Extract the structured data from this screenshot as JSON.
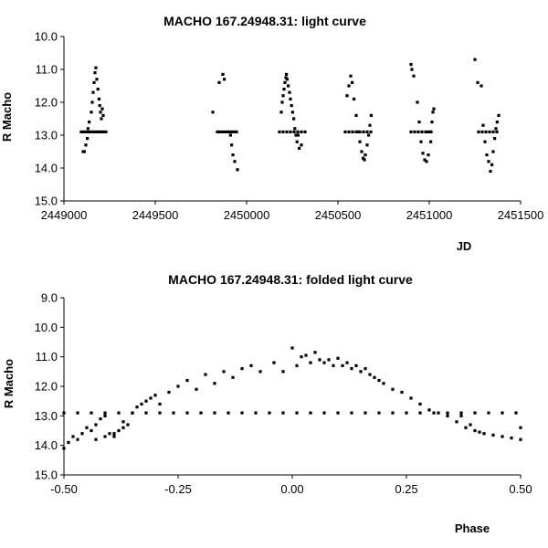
{
  "chart_data": [
    {
      "type": "scatter",
      "title": "MACHO 167.24948.31: light curve",
      "xlabel": "JD",
      "ylabel": "R Macho",
      "xlim": [
        2449000,
        2451500
      ],
      "ylim": [
        10.0,
        15.0
      ],
      "y_inverted": true,
      "x_ticks": [
        "2449000",
        "2449500",
        "2450000",
        "2450500",
        "2451000",
        "2451500"
      ],
      "y_ticks": [
        "10.0",
        "11.0",
        "12.0",
        "13.0",
        "14.0",
        "15.0"
      ],
      "grid": false,
      "marker_color": "#000000",
      "series": [
        {
          "points": [
            [
              2449095,
              12.9
            ],
            [
              2449110,
              12.9
            ],
            [
              2449125,
              12.9
            ],
            [
              2449140,
              12.9
            ],
            [
              2449155,
              12.9
            ],
            [
              2449170,
              12.9
            ],
            [
              2449185,
              12.9
            ],
            [
              2449200,
              12.9
            ],
            [
              2449215,
              12.9
            ],
            [
              2449230,
              12.9
            ],
            [
              2449105,
              13.5
            ],
            [
              2449112,
              13.5
            ],
            [
              2449120,
              13.3
            ],
            [
              2449128,
              13.1
            ],
            [
              2449132,
              12.8
            ],
            [
              2449138,
              12.6
            ],
            [
              2449150,
              12.3
            ],
            [
              2449155,
              12.0
            ],
            [
              2449160,
              11.7
            ],
            [
              2449165,
              11.4
            ],
            [
              2449170,
              11.1
            ],
            [
              2449175,
              10.95
            ],
            [
              2449180,
              11.3
            ],
            [
              2449186,
              11.6
            ],
            [
              2449192,
              11.9
            ],
            [
              2449196,
              12.1
            ],
            [
              2449200,
              12.3
            ],
            [
              2449205,
              12.5
            ],
            [
              2449210,
              12.2
            ],
            [
              2449215,
              12.4
            ],
            [
              2449840,
              12.9
            ],
            [
              2449855,
              12.9
            ],
            [
              2449870,
              12.9
            ],
            [
              2449885,
              12.9
            ],
            [
              2449900,
              12.9
            ],
            [
              2449915,
              12.9
            ],
            [
              2449930,
              12.9
            ],
            [
              2449945,
              12.9
            ],
            [
              2449815,
              12.3
            ],
            [
              2449850,
              11.4
            ],
            [
              2449870,
              11.15
            ],
            [
              2449878,
              11.3
            ],
            [
              2449912,
              13.0
            ],
            [
              2449918,
              13.3
            ],
            [
              2449925,
              13.6
            ],
            [
              2449935,
              13.8
            ],
            [
              2449950,
              14.05
            ],
            [
              2450180,
              12.9
            ],
            [
              2450200,
              12.9
            ],
            [
              2450220,
              12.9
            ],
            [
              2450240,
              12.9
            ],
            [
              2450260,
              12.9
            ],
            [
              2450280,
              12.9
            ],
            [
              2450300,
              12.9
            ],
            [
              2450320,
              12.9
            ],
            [
              2450190,
              12.3
            ],
            [
              2450195,
              12.0
            ],
            [
              2450200,
              11.8
            ],
            [
              2450205,
              11.6
            ],
            [
              2450210,
              11.4
            ],
            [
              2450215,
              11.25
            ],
            [
              2450218,
              11.15
            ],
            [
              2450222,
              11.3
            ],
            [
              2450228,
              11.5
            ],
            [
              2450235,
              11.7
            ],
            [
              2450240,
              11.9
            ],
            [
              2450246,
              12.1
            ],
            [
              2450252,
              12.3
            ],
            [
              2450258,
              12.5
            ],
            [
              2450264,
              12.8
            ],
            [
              2450270,
              13.0
            ],
            [
              2450276,
              13.2
            ],
            [
              2450282,
              13.0
            ],
            [
              2450288,
              13.4
            ],
            [
              2450300,
              13.3
            ],
            [
              2450540,
              12.9
            ],
            [
              2450560,
              12.9
            ],
            [
              2450580,
              12.9
            ],
            [
              2450600,
              12.9
            ],
            [
              2450620,
              12.9
            ],
            [
              2450640,
              12.9
            ],
            [
              2450660,
              12.9
            ],
            [
              2450680,
              12.9
            ],
            [
              2450550,
              11.8
            ],
            [
              2450560,
              11.5
            ],
            [
              2450570,
              11.2
            ],
            [
              2450578,
              11.4
            ],
            [
              2450588,
              11.9
            ],
            [
              2450600,
              12.4
            ],
            [
              2450610,
              12.9
            ],
            [
              2450620,
              13.2
            ],
            [
              2450630,
              13.5
            ],
            [
              2450638,
              13.7
            ],
            [
              2450645,
              13.75
            ],
            [
              2450650,
              13.6
            ],
            [
              2450660,
              13.3
            ],
            [
              2450668,
              13.0
            ],
            [
              2450675,
              12.7
            ],
            [
              2450682,
              12.4
            ],
            [
              2450900,
              12.9
            ],
            [
              2450920,
              12.9
            ],
            [
              2450940,
              12.9
            ],
            [
              2450960,
              12.9
            ],
            [
              2450980,
              12.9
            ],
            [
              2450995,
              12.9
            ],
            [
              2451010,
              12.9
            ],
            [
              2450900,
              10.85
            ],
            [
              2450905,
              11.0
            ],
            [
              2450915,
              11.2
            ],
            [
              2450935,
              12.0
            ],
            [
              2450945,
              12.6
            ],
            [
              2450955,
              13.2
            ],
            [
              2450965,
              13.55
            ],
            [
              2450975,
              13.75
            ],
            [
              2450985,
              13.8
            ],
            [
              2450995,
              13.6
            ],
            [
              2451008,
              13.2
            ],
            [
              2451015,
              12.6
            ],
            [
              2451020,
              12.3
            ],
            [
              2451025,
              12.2
            ],
            [
              2451270,
              12.9
            ],
            [
              2451290,
              12.9
            ],
            [
              2451310,
              12.9
            ],
            [
              2451330,
              12.9
            ],
            [
              2451350,
              12.9
            ],
            [
              2451370,
              12.9
            ],
            [
              2451250,
              10.7
            ],
            [
              2451265,
              11.4
            ],
            [
              2451285,
              11.5
            ],
            [
              2451295,
              12.7
            ],
            [
              2451305,
              13.2
            ],
            [
              2451315,
              13.6
            ],
            [
              2451325,
              13.8
            ],
            [
              2451335,
              14.1
            ],
            [
              2451343,
              13.9
            ],
            [
              2451350,
              13.5
            ],
            [
              2451358,
              13.1
            ],
            [
              2451365,
              12.8
            ],
            [
              2451372,
              12.6
            ],
            [
              2451380,
              12.4
            ]
          ]
        }
      ]
    },
    {
      "type": "scatter",
      "title": "MACHO 167.24948.31: folded light curve",
      "xlabel": "Phase",
      "ylabel": "R Macho",
      "xlim": [
        -0.5,
        0.5
      ],
      "ylim": [
        9.0,
        15.0
      ],
      "y_inverted": true,
      "x_ticks": [
        "-0.50",
        "-0.25",
        "0.00",
        "0.25",
        "0.50"
      ],
      "y_ticks": [
        "9.0",
        "10.0",
        "11.0",
        "12.0",
        "13.0",
        "14.0",
        "15.0"
      ],
      "grid": false,
      "marker_color": "#000000",
      "series": [
        {
          "points": [
            [
              -0.5,
              12.9
            ],
            [
              -0.47,
              12.9
            ],
            [
              -0.44,
              12.9
            ],
            [
              -0.41,
              12.9
            ],
            [
              -0.38,
              12.9
            ],
            [
              -0.35,
              12.9
            ],
            [
              -0.32,
              12.9
            ],
            [
              -0.29,
              12.9
            ],
            [
              -0.26,
              12.9
            ],
            [
              -0.23,
              12.9
            ],
            [
              -0.2,
              12.9
            ],
            [
              -0.17,
              12.9
            ],
            [
              -0.14,
              12.9
            ],
            [
              -0.11,
              12.9
            ],
            [
              -0.08,
              12.9
            ],
            [
              -0.05,
              12.9
            ],
            [
              -0.02,
              12.9
            ],
            [
              0.01,
              12.9
            ],
            [
              0.04,
              12.9
            ],
            [
              0.07,
              12.9
            ],
            [
              0.1,
              12.9
            ],
            [
              0.13,
              12.9
            ],
            [
              0.16,
              12.9
            ],
            [
              0.19,
              12.9
            ],
            [
              0.22,
              12.9
            ],
            [
              0.25,
              12.9
            ],
            [
              0.28,
              12.9
            ],
            [
              0.31,
              12.9
            ],
            [
              0.34,
              12.9
            ],
            [
              0.37,
              12.9
            ],
            [
              0.4,
              12.9
            ],
            [
              0.43,
              12.9
            ],
            [
              0.46,
              12.9
            ],
            [
              0.49,
              12.9
            ],
            [
              -0.5,
              14.1
            ],
            [
              -0.49,
              13.9
            ],
            [
              -0.48,
              13.7
            ],
            [
              -0.47,
              13.8
            ],
            [
              -0.46,
              13.6
            ],
            [
              -0.45,
              13.4
            ],
            [
              -0.44,
              13.5
            ],
            [
              -0.43,
              13.3
            ],
            [
              -0.42,
              13.1
            ],
            [
              -0.41,
              13.0
            ],
            [
              -0.4,
              13.6
            ],
            [
              -0.39,
              13.7
            ],
            [
              -0.38,
              13.5
            ],
            [
              -0.37,
              13.2
            ],
            [
              -0.36,
              13.3
            ],
            [
              -0.35,
              12.9
            ],
            [
              -0.34,
              12.7
            ],
            [
              -0.33,
              12.6
            ],
            [
              -0.32,
              12.5
            ],
            [
              -0.31,
              12.4
            ],
            [
              -0.3,
              12.3
            ],
            [
              -0.29,
              12.6
            ],
            [
              -0.27,
              12.2
            ],
            [
              -0.25,
              12.0
            ],
            [
              -0.23,
              11.8
            ],
            [
              -0.21,
              12.1
            ],
            [
              -0.19,
              11.6
            ],
            [
              -0.17,
              11.9
            ],
            [
              -0.15,
              11.5
            ],
            [
              -0.13,
              11.7
            ],
            [
              -0.11,
              11.4
            ],
            [
              -0.09,
              11.3
            ],
            [
              -0.07,
              11.5
            ],
            [
              -0.04,
              11.2
            ],
            [
              -0.02,
              11.5
            ],
            [
              0.0,
              10.7
            ],
            [
              0.01,
              11.3
            ],
            [
              0.02,
              11.0
            ],
            [
              0.03,
              10.95
            ],
            [
              0.04,
              11.2
            ],
            [
              0.05,
              10.85
            ],
            [
              0.06,
              11.1
            ],
            [
              0.07,
              11.2
            ],
            [
              0.08,
              11.1
            ],
            [
              0.09,
              11.3
            ],
            [
              0.1,
              11.05
            ],
            [
              0.11,
              11.3
            ],
            [
              0.12,
              11.2
            ],
            [
              0.13,
              11.4
            ],
            [
              0.14,
              11.3
            ],
            [
              0.15,
              11.5
            ],
            [
              0.16,
              11.4
            ],
            [
              0.17,
              11.6
            ],
            [
              0.18,
              11.7
            ],
            [
              0.19,
              11.8
            ],
            [
              0.2,
              11.9
            ],
            [
              0.22,
              12.1
            ],
            [
              0.24,
              12.2
            ],
            [
              0.26,
              12.4
            ],
            [
              0.28,
              12.6
            ],
            [
              0.3,
              12.8
            ],
            [
              0.32,
              12.9
            ],
            [
              0.34,
              13.0
            ],
            [
              0.36,
              13.2
            ],
            [
              0.38,
              13.4
            ],
            [
              0.4,
              13.5
            ],
            [
              0.42,
              13.6
            ],
            [
              0.44,
              13.65
            ],
            [
              0.46,
              13.7
            ],
            [
              0.48,
              13.75
            ],
            [
              0.5,
              13.8
            ],
            [
              0.37,
              13.0
            ],
            [
              0.39,
              13.3
            ],
            [
              0.41,
              13.55
            ],
            [
              0.5,
              13.4
            ],
            [
              -0.43,
              13.8
            ],
            [
              -0.41,
              13.7
            ],
            [
              -0.39,
              13.6
            ],
            [
              -0.37,
              13.4
            ]
          ]
        }
      ]
    }
  ]
}
